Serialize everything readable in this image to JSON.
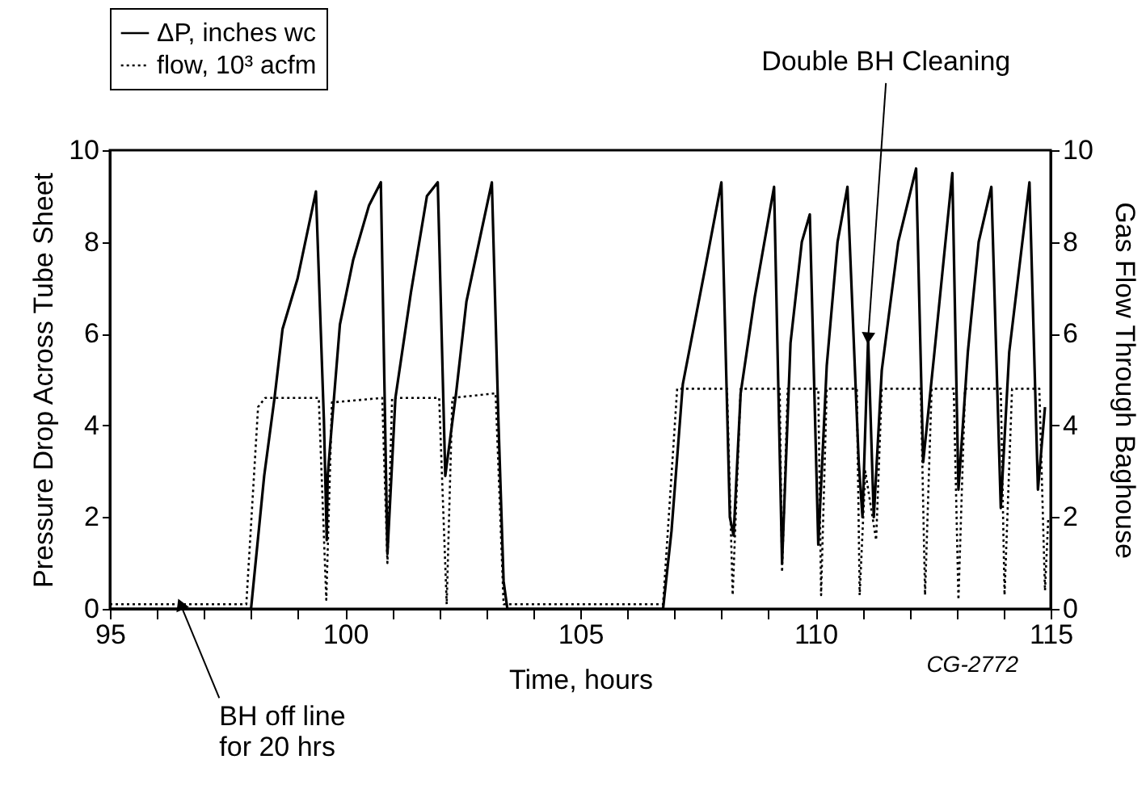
{
  "chart_data": {
    "type": "line",
    "xlabel": "Time, hours",
    "ylabel": "Pressure Drop Across Tube Sheet",
    "y2label": "Gas Flow Through Baghouse",
    "xlim": [
      95,
      115
    ],
    "xticks": [
      95,
      {
        "value": 96,
        "label": null
      },
      {
        "value": 97,
        "label": null
      },
      {
        "value": 98,
        "label": null
      },
      {
        "value": 99,
        "label": null
      },
      100,
      {
        "value": 101,
        "label": null
      },
      {
        "value": 102,
        "label": null
      },
      {
        "value": 103,
        "label": null
      },
      {
        "value": 104,
        "label": null
      },
      105,
      {
        "value": 106,
        "label": null
      },
      {
        "value": 107,
        "label": null
      },
      {
        "value": 108,
        "label": null
      },
      {
        "value": 109,
        "label": null
      },
      110,
      {
        "value": 111,
        "label": null
      },
      {
        "value": 112,
        "label": null
      },
      {
        "value": 113,
        "label": null
      },
      {
        "value": 114,
        "label": null
      },
      115
    ],
    "ylim": [
      0,
      10
    ],
    "yticks": [
      0,
      2,
      4,
      6,
      8,
      10
    ],
    "y2lim": [
      0,
      10
    ],
    "y2ticks": [
      0,
      2,
      4,
      6,
      8,
      10
    ],
    "grid": false,
    "legend": "top left",
    "marker": "none",
    "series": [
      {
        "name": "ΔP, inches wc",
        "color": "#000000",
        "line_style": "solid",
        "x": [
          95,
          98.0,
          98.28,
          98.5,
          98.67,
          98.99,
          99.38,
          99.55,
          99.61,
          99.63,
          99.89,
          100.17,
          100.51,
          100.76,
          100.9,
          101.07,
          101.4,
          101.74,
          101.97,
          102.13,
          102.36,
          102.58,
          102.87,
          103.12,
          103.26,
          103.37,
          103.45,
          106.76,
          106.94,
          107.18,
          107.65,
          108.0,
          108.18,
          108.26,
          108.41,
          108.71,
          109.12,
          109.29,
          109.47,
          109.71,
          109.88,
          110.06,
          110.24,
          110.47,
          110.68,
          110.92,
          111.0,
          111.12,
          111.24,
          111.41,
          111.76,
          112.14,
          112.29,
          112.53,
          112.91,
          113.04,
          113.24,
          113.47,
          113.74,
          113.94,
          114.12,
          114.55,
          114.73,
          114.88
        ],
        "values": [
          0,
          0,
          2.9,
          4.6,
          6.1,
          7.2,
          9.1,
          4.1,
          1.5,
          2.9,
          6.2,
          7.6,
          8.8,
          9.3,
          1.2,
          4.6,
          6.9,
          9.0,
          9.3,
          2.9,
          4.7,
          6.7,
          8.1,
          9.3,
          4.1,
          0.6,
          0,
          0,
          1.7,
          4.9,
          7.4,
          9.3,
          2.0,
          1.6,
          4.7,
          6.8,
          9.2,
          1.0,
          5.8,
          8.0,
          8.6,
          1.4,
          5.3,
          8.0,
          9.2,
          3.2,
          2.0,
          5.9,
          2.0,
          5.2,
          8.0,
          9.6,
          3.2,
          5.6,
          9.5,
          2.6,
          5.6,
          8.0,
          9.2,
          2.2,
          5.6,
          9.3,
          2.6,
          4.4
        ]
      },
      {
        "name": "flow, 10³ acfm",
        "color": "#000000",
        "line_style": "dotted",
        "axis": "y2",
        "x": [
          95,
          97.9,
          98.15,
          98.3,
          99.44,
          99.6,
          99.72,
          100.79,
          100.9,
          101.0,
          102.0,
          102.16,
          102.28,
          103.2,
          103.37,
          106.76,
          107.06,
          108.12,
          108.24,
          108.41,
          109.24,
          109.29,
          109.41,
          110.06,
          110.12,
          110.24,
          110.88,
          110.94,
          111.06,
          111.29,
          111.41,
          112.24,
          112.33,
          112.47,
          112.94,
          113.04,
          113.18,
          113.94,
          114.02,
          114.18,
          114.76,
          114.88,
          114.95
        ],
        "values": [
          0.1,
          0.1,
          4.4,
          4.6,
          4.6,
          0.2,
          4.5,
          4.6,
          1.0,
          4.6,
          4.6,
          0.1,
          4.6,
          4.7,
          0.1,
          0.1,
          4.8,
          4.8,
          0.3,
          4.8,
          4.8,
          0.8,
          4.8,
          4.8,
          0.3,
          4.8,
          4.8,
          0.3,
          3.0,
          1.5,
          4.8,
          4.8,
          0.3,
          4.8,
          4.8,
          0.2,
          4.8,
          4.8,
          0.3,
          4.8,
          4.8,
          0.4,
          2.0
        ]
      }
    ],
    "annotations": [
      {
        "text": "Double BH Cleaning",
        "x": 111.12,
        "y": 5.9
      },
      {
        "text": "BH off line\nfor 20 hrs",
        "x": 96.5,
        "y": 0.1
      },
      "CG-2772"
    ]
  }
}
